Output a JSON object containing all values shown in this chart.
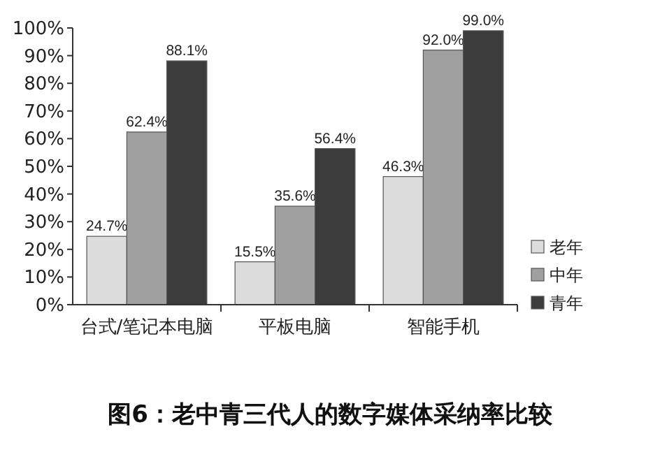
{
  "chart_data": {
    "type": "bar",
    "title": "图6：老中青三代人的数字媒体采纳率比较",
    "categories": [
      "台式/笔记本电脑",
      "平板电脑",
      "智能手机"
    ],
    "series": [
      {
        "name": "老年",
        "color": "#dcdcdc",
        "values": [
          24.7,
          15.5,
          46.3
        ],
        "value_labels": [
          "24.7%",
          "15.5%",
          "46.3%"
        ]
      },
      {
        "name": "中年",
        "color": "#a0a0a0",
        "values": [
          62.4,
          35.6,
          92.0
        ],
        "value_labels": [
          "62.4%",
          "35.6%",
          "92.0%"
        ]
      },
      {
        "name": "青年",
        "color": "#3c3c3c",
        "values": [
          88.1,
          56.4,
          99.0
        ],
        "value_labels": [
          "88.1%",
          "56.4%",
          "99.0%"
        ]
      }
    ],
    "ylim": [
      0,
      100
    ],
    "yticks": [
      {
        "value": 0,
        "label": "0%"
      },
      {
        "value": 10,
        "label": "10%"
      },
      {
        "value": 20,
        "label": "20%"
      },
      {
        "value": 30,
        "label": "30%"
      },
      {
        "value": 40,
        "label": "40%"
      },
      {
        "value": 50,
        "label": "50%"
      },
      {
        "value": 60,
        "label": "60%"
      },
      {
        "value": 70,
        "label": "70%"
      },
      {
        "value": 80,
        "label": "80%"
      },
      {
        "value": 90,
        "label": "90%"
      },
      {
        "value": 100,
        "label": "100%"
      }
    ],
    "legend": "right",
    "grid": false
  }
}
